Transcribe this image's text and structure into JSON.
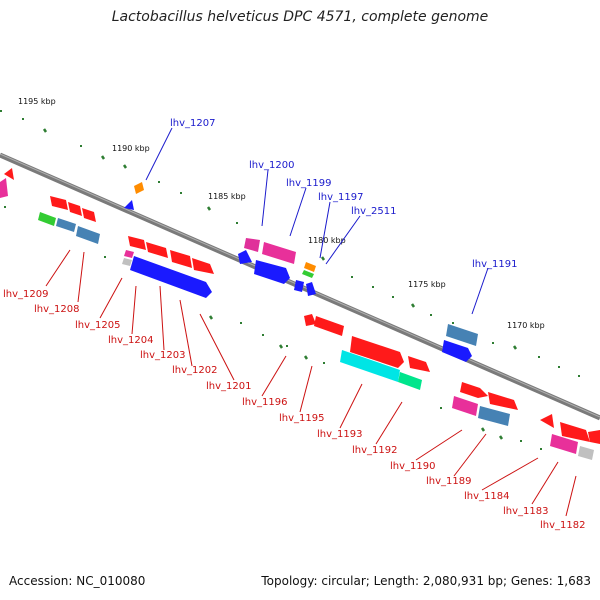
{
  "title": "Lactobacillus helveticus DPC 4571, complete genome",
  "footer": {
    "accession": "Accession: NC_010080",
    "topology": "Topology: circular; Length: 2,080,931 bp; Genes: 1,683"
  },
  "colors": {
    "backbone": "#808080",
    "label_top": "#1a1acc",
    "label_bottom": "#cc1111",
    "tick": "#2e7d32"
  },
  "kbp_marks": [
    {
      "text": "1195 kbp"
    },
    {
      "text": "1190 kbp"
    },
    {
      "text": "1185 kbp"
    },
    {
      "text": "1180 kbp"
    },
    {
      "text": "1175 kbp"
    },
    {
      "text": "1170 kbp"
    }
  ],
  "top_labels": [
    {
      "text": "lhv_1207"
    },
    {
      "text": "lhv_1200"
    },
    {
      "text": "lhv_1199"
    },
    {
      "text": "lhv_1197"
    },
    {
      "text": "lhv_2511"
    },
    {
      "text": "lhv_1191"
    }
  ],
  "bottom_labels": [
    {
      "text": "lhv_1209"
    },
    {
      "text": "lhv_1208"
    },
    {
      "text": "lhv_1205"
    },
    {
      "text": "lhv_1204"
    },
    {
      "text": "lhv_1203"
    },
    {
      "text": "lhv_1202"
    },
    {
      "text": "lhv_1201"
    },
    {
      "text": "lhv_1196"
    },
    {
      "text": "lhv_1195"
    },
    {
      "text": "lhv_1193"
    },
    {
      "text": "lhv_1192"
    },
    {
      "text": "lhv_1190"
    },
    {
      "text": "lhv_1189"
    },
    {
      "text": "lhv_1184"
    },
    {
      "text": "lhv_1183"
    },
    {
      "text": "lhv_1182"
    }
  ]
}
